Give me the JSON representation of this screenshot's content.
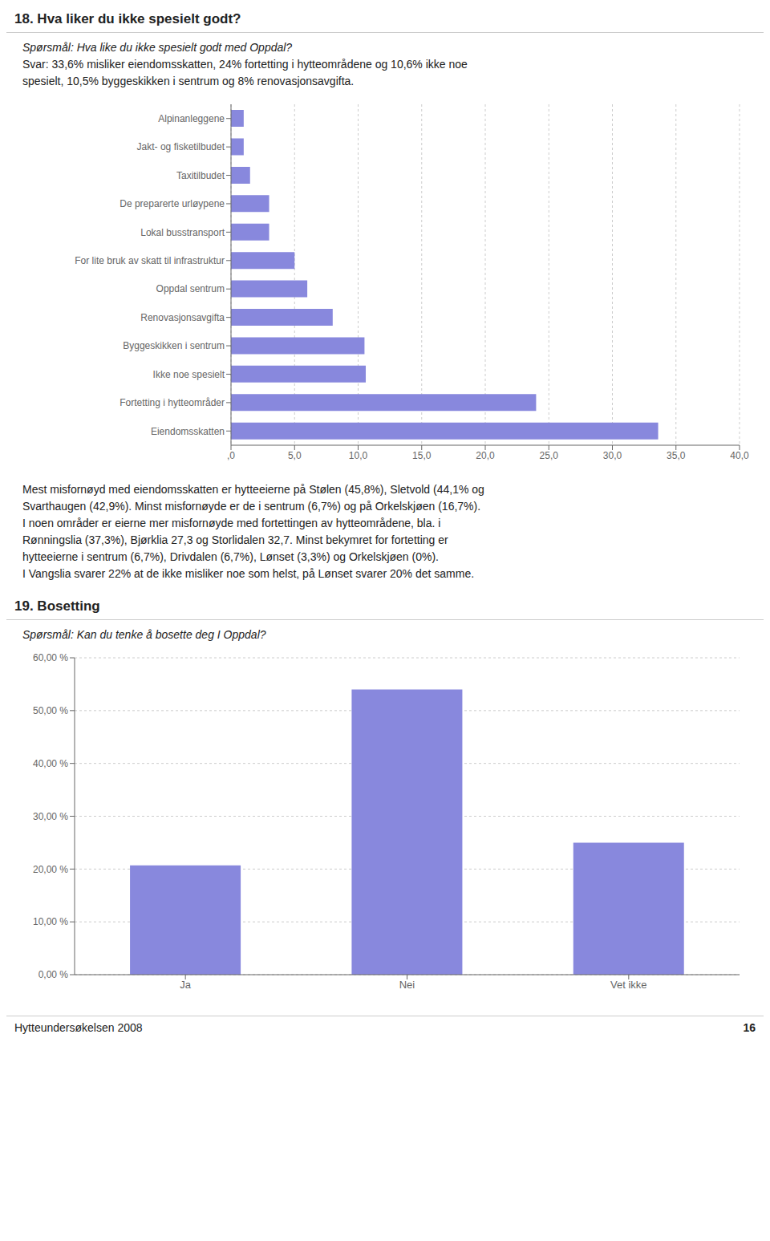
{
  "chart_data": [
    {
      "type": "bar",
      "orientation": "horizontal",
      "title": "18. Hva liker du ikke spesielt godt?",
      "subtitle": [
        "Spørsmål: Hva like du ikke spesielt godt med Oppdal?",
        "Svar: 33,6% misliker eiendomsskatten, 24% fortetting i hytteområdene og 10,6% ikke noe",
        "spesielt, 10,5% byggeskikken i sentrum og 8% renovasjonsavgifta."
      ],
      "categories": [
        "Alpinanleggene",
        "Jakt- og fisketilbudet",
        "Taxitilbudet",
        "De preparerte urløypene",
        "Lokal busstransport",
        "For lite bruk av skatt til infrastruktur",
        "Oppdal sentrum",
        "Renovasjonsavgifta",
        "Byggeskikken i sentrum",
        "Ikke noe spesielt",
        "Fortetting i hytteområder",
        "Eiendomsskatten"
      ],
      "values": [
        1.0,
        1.0,
        1.5,
        3.0,
        3.0,
        5.0,
        6.0,
        8.0,
        10.5,
        10.6,
        24.0,
        33.6
      ],
      "color": "#8888dd",
      "xlim": [
        0,
        40
      ],
      "xticks": [
        {
          "value": 0,
          "label": ",0"
        },
        {
          "value": 5,
          "label": "5,0"
        },
        {
          "value": 10,
          "label": "10,0"
        },
        {
          "value": 15,
          "label": "15,0"
        },
        {
          "value": 20,
          "label": "20,0"
        },
        {
          "value": 25,
          "label": "25,0"
        },
        {
          "value": 30,
          "label": "30,0"
        },
        {
          "value": 35,
          "label": "35,0"
        },
        {
          "value": 40,
          "label": "40,0"
        }
      ],
      "grid": true,
      "annotations": [
        "Mest misfornøyd med eiendomsskatten er hytteeierne på Stølen (45,8%), Sletvold (44,1% og",
        "Svarthaugen (42,9%). Minst misfornøyde er de i sentrum (6,7%) og på Orkelskjøen (16,7%).",
        "I noen områder er eierne mer misfornøyde med fortettingen av hytteområdene, bla. i",
        "Rønningslia (37,3%), Bjørklia 27,3 og Storlidalen 32,7. Minst bekymret for fortetting er",
        "hytteeierne i sentrum (6,7%), Drivdalen (6,7%), Lønset (3,3%) og Orkelskjøen (0%).",
        "I Vangslia svarer 22% at de ikke misliker noe som helst, på Lønset svarer 20% det samme."
      ]
    },
    {
      "type": "bar",
      "title": "19. Bosetting",
      "subtitle": [
        "Spørsmål: Kan du tenke å bosette deg I Oppdal?"
      ],
      "categories": [
        "Ja",
        "Nei",
        "Vet ikke"
      ],
      "values": [
        20.7,
        54.0,
        25.0
      ],
      "color": "#8888dd",
      "ylim": [
        0,
        60
      ],
      "yticks": [
        {
          "value": 0,
          "label": "0,00 %"
        },
        {
          "value": 10,
          "label": "10,00 %"
        },
        {
          "value": 20,
          "label": "20,00 %"
        },
        {
          "value": 30,
          "label": "30,00 %"
        },
        {
          "value": 40,
          "label": "40,00 %"
        },
        {
          "value": 50,
          "label": "50,00 %"
        },
        {
          "value": 60,
          "label": "60,00 %"
        }
      ],
      "grid": true,
      "annotations": [
        "Hytteundersøkelsen 2008",
        "16"
      ]
    }
  ]
}
